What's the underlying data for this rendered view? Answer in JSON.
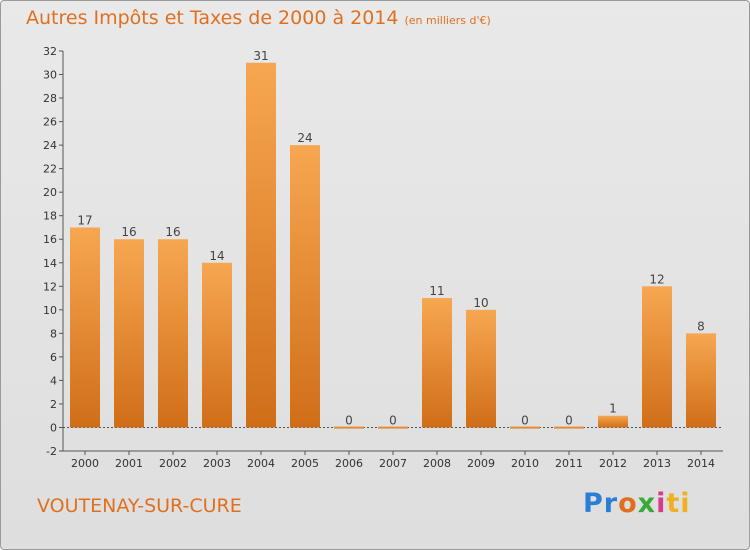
{
  "chart_data": {
    "type": "bar",
    "title": "Autres Impôts et Taxes de 2000 à 2014",
    "unit": "(en milliers d'€)",
    "categories": [
      "2000",
      "2001",
      "2002",
      "2003",
      "2004",
      "2005",
      "2006",
      "2007",
      "2008",
      "2009",
      "2010",
      "2011",
      "2012",
      "2013",
      "2014"
    ],
    "values": [
      17,
      16,
      16,
      14,
      31,
      24,
      0,
      0,
      11,
      10,
      0,
      0,
      1,
      12,
      8
    ],
    "ylim": [
      -2,
      32
    ],
    "yticks": [
      -2,
      0,
      2,
      4,
      6,
      8,
      10,
      12,
      14,
      16,
      18,
      20,
      22,
      24,
      26,
      28,
      30,
      32
    ],
    "grid": false,
    "bar_color": "#f0952e",
    "bar_color_dark": "#d0701a"
  },
  "footer": {
    "commune": "VOUTENAY-SUR-CURE"
  },
  "logo": {
    "parts": [
      "Pr",
      "o",
      "x",
      "i",
      "ti"
    ]
  }
}
